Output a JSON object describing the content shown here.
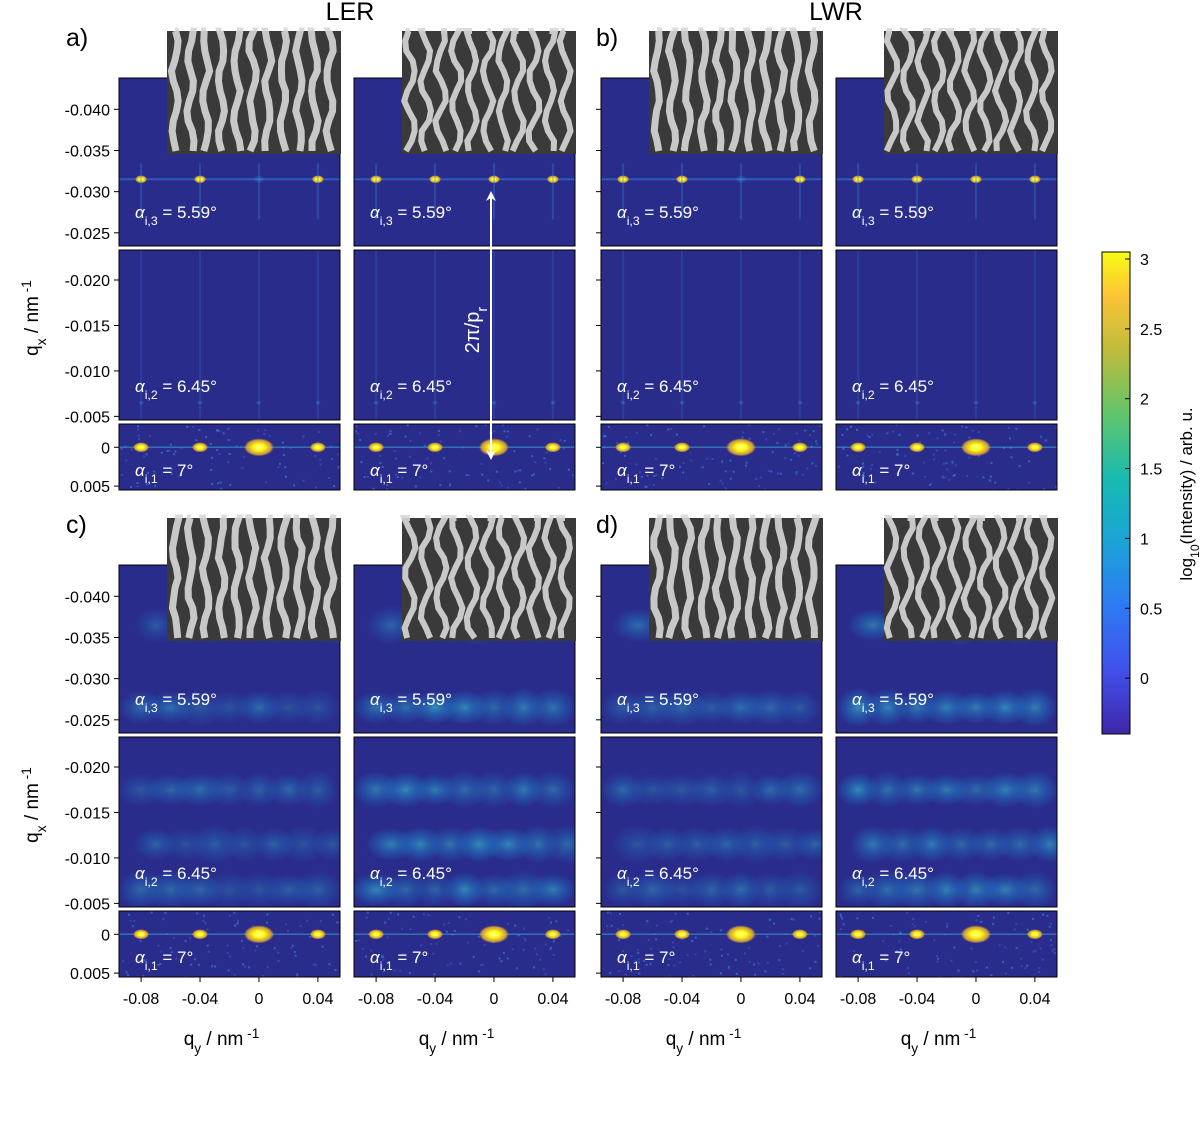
{
  "figure": {
    "group_titles": [
      "LER",
      "LWR"
    ],
    "panel_labels": [
      "a)",
      "b)",
      "c)",
      "d)"
    ],
    "x_axis_label": "q",
    "x_axis_sub": "y",
    "x_axis_unit": " / nm",
    "y_axis_label": "q",
    "y_axis_sub": "x",
    "y_axis_unit": " / nm",
    "unit_exponent": "-1",
    "annotation_arrow_label": "2π/p",
    "annotation_arrow_sub": "r",
    "alpha_symbol": "α",
    "angle_labels": [
      {
        "sub": "i,3",
        "text": " = 5.59°"
      },
      {
        "sub": "i,2",
        "text": " = 6.45°"
      },
      {
        "sub": "i,1",
        "text": " = 7°"
      }
    ],
    "colorbar_label_prefix": "log",
    "colorbar_label_sub": "10",
    "colorbar_label_suffix": "(Intensity) / arb. u.",
    "colors": {
      "background_dark": "#2a2c8c",
      "peak_bright": "#ffff14",
      "peak_mid": "#f5b426",
      "diffuse": "#2fa0c6",
      "sem_dark": "#3a3a3a",
      "sem_light": "#d8d8d8"
    }
  },
  "chart_data": {
    "type": "heatmap",
    "panels": [
      "a)",
      "b)",
      "c)",
      "d)"
    ],
    "x_ticks": [
      "-0.08",
      "-0.04",
      "0",
      "0.04"
    ],
    "x_tick_values": [
      -0.08,
      -0.04,
      0,
      0.04
    ],
    "xlim": [
      -0.095,
      0.055
    ],
    "y_ticks_top": [
      "-0.040",
      "-0.035",
      "-0.030",
      "-0.025"
    ],
    "y_tick_values_top": [
      -0.04,
      -0.035,
      -0.03,
      -0.025
    ],
    "ylim_top": [
      -0.0438,
      -0.0234
    ],
    "y_ticks_mid": [
      "-0.020",
      "-0.015",
      "-0.010",
      "-0.005"
    ],
    "y_tick_values_mid": [
      -0.02,
      -0.015,
      -0.01,
      -0.005
    ],
    "ylim_mid": [
      -0.0233,
      -0.0046
    ],
    "y_ticks_bot": [
      "0",
      "0.005"
    ],
    "y_tick_values_bot": [
      0,
      0.005
    ],
    "ylim_bot": [
      -0.003,
      0.0055
    ],
    "colorbar_ticks": [
      "3",
      "2.5",
      "2",
      "1.5",
      "1",
      "0.5",
      "0"
    ],
    "colorbar_tick_values": [
      3,
      2.5,
      2,
      1.5,
      1,
      0.5,
      0
    ],
    "colorbar_range": [
      -0.4,
      3.05
    ],
    "sharp_peak_qx_rows_ab": [
      -0.0315,
      -0.0065,
      0
    ],
    "peak_qy_positions": [
      -0.08,
      -0.04,
      0,
      0.04
    ]
  }
}
